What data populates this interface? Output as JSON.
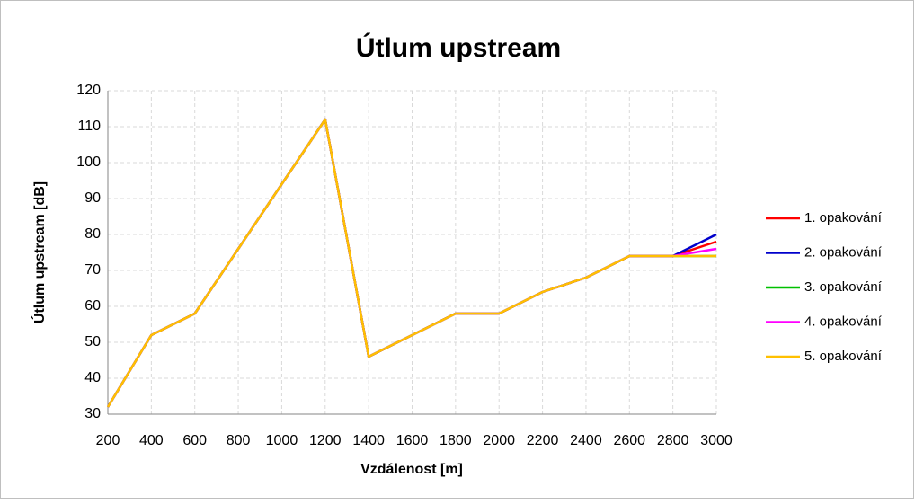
{
  "chart_data": {
    "type": "line",
    "title": "Útlum upstream",
    "x_label": "Vzdálenost [m]",
    "y_label": "Útlum upstream [dB]",
    "x": [
      200,
      400,
      600,
      800,
      1000,
      1200,
      1400,
      1600,
      1800,
      2000,
      2200,
      2400,
      2600,
      2800,
      3000
    ],
    "series": [
      {
        "name": "1. opakování",
        "color": "#ff0000",
        "values": [
          32,
          52,
          58,
          76,
          94,
          112,
          46,
          52,
          58,
          58,
          64,
          68,
          74,
          74,
          78
        ]
      },
      {
        "name": "2. opakování",
        "color": "#0000cc",
        "values": [
          32,
          52,
          58,
          76,
          94,
          112,
          46,
          52,
          58,
          58,
          64,
          68,
          74,
          74,
          80
        ]
      },
      {
        "name": "3. opakování",
        "color": "#00c000",
        "values": [
          32,
          52,
          58,
          76,
          94,
          112,
          46,
          52,
          58,
          58,
          64,
          68,
          74,
          74,
          74
        ]
      },
      {
        "name": "4. opakování",
        "color": "#ff00ff",
        "values": [
          32,
          52,
          58,
          76,
          94,
          112,
          46,
          52,
          58,
          58,
          64,
          68,
          74,
          74,
          76
        ]
      },
      {
        "name": "5. opakování",
        "color": "#ffc000",
        "values": [
          32,
          52,
          58,
          76,
          94,
          112,
          46,
          52,
          58,
          58,
          64,
          68,
          74,
          74,
          74
        ]
      }
    ],
    "xlim": [
      200,
      3000
    ],
    "xticks": [
      200,
      400,
      600,
      800,
      1000,
      1200,
      1400,
      1600,
      1800,
      2000,
      2200,
      2400,
      2600,
      2800,
      3000
    ],
    "ylim": [
      30,
      120
    ],
    "yticks": [
      30,
      40,
      50,
      60,
      70,
      80,
      90,
      100,
      110,
      120
    ],
    "grid": true,
    "legend": "right"
  }
}
